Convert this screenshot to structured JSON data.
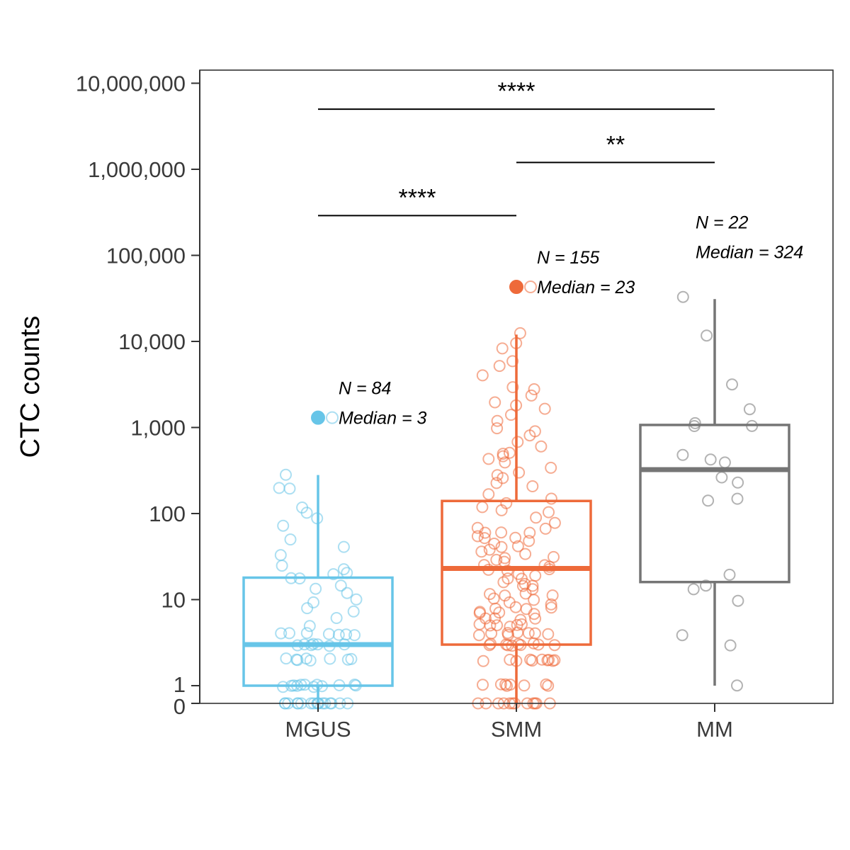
{
  "chart_data": {
    "type": "box",
    "title": "",
    "xlabel": "",
    "ylabel": "CTC counts",
    "y_scale": "pseudo-log",
    "ylim": [
      0,
      25000000
    ],
    "y_ticks": [
      {
        "value": 0,
        "label": "0"
      },
      {
        "value": 1,
        "label": "1"
      },
      {
        "value": 10,
        "label": "10"
      },
      {
        "value": 100,
        "label": "100"
      },
      {
        "value": 1000,
        "label": "1,000"
      },
      {
        "value": 10000,
        "label": "10,000"
      },
      {
        "value": 100000,
        "label": "100,000"
      },
      {
        "value": 1000000,
        "label": "1,000,000"
      },
      {
        "value": 10000000,
        "label": "10,000,000"
      }
    ],
    "categories": [
      "MGUS",
      "SMM",
      "MM"
    ],
    "grid": false,
    "legend": "none",
    "groups": [
      {
        "name": "MGUS",
        "color": "#67C5E8",
        "n_label": "N = 84",
        "median_label": "Median = 3",
        "box": {
          "q1": 1,
          "median": 3,
          "q3": 18,
          "whisker_low": 0,
          "whisker_high": 280
        },
        "marker_value": 1300,
        "points": [
          0,
          0,
          0,
          0,
          0,
          0,
          0,
          0,
          0,
          0,
          0,
          0,
          0,
          0,
          0,
          0,
          0,
          1,
          1,
          1,
          1,
          1,
          1,
          1,
          1,
          1,
          1,
          1,
          1,
          2,
          2,
          2,
          2,
          2,
          2,
          2,
          2,
          3,
          3,
          3,
          3,
          3,
          3,
          3,
          4,
          4,
          4,
          4,
          4,
          4,
          4,
          5,
          6,
          7,
          8,
          9,
          10,
          12,
          13,
          15,
          17,
          18,
          20,
          20,
          22,
          24,
          33,
          42,
          50,
          71,
          85,
          100,
          120,
          190,
          200,
          280
        ]
      },
      {
        "name": "SMM",
        "color": "#EE6A3A",
        "n_label": "N = 155",
        "median_label": "Median = 23",
        "box": {
          "q1": 3,
          "median": 23,
          "q3": 140,
          "whisker_low": 0,
          "whisker_high": 12000
        },
        "marker_value": 43000,
        "points": [
          0,
          0,
          0,
          0,
          0,
          0,
          0,
          0,
          0,
          0,
          0,
          0,
          1,
          1,
          1,
          1,
          1,
          1,
          1,
          1,
          2,
          2,
          2,
          2,
          2,
          2,
          2,
          2,
          2,
          2,
          3,
          3,
          3,
          3,
          3,
          3,
          3,
          3,
          3,
          3,
          4,
          4,
          4,
          4,
          4,
          4,
          4,
          4,
          5,
          5,
          5,
          5,
          5,
          5,
          6,
          6,
          6,
          6,
          7,
          7,
          7,
          7,
          8,
          8,
          8,
          8,
          9,
          9,
          10,
          10,
          11,
          11,
          12,
          12,
          13,
          14,
          15,
          15,
          16,
          17,
          18,
          19,
          20,
          21,
          22,
          23,
          24,
          25,
          26,
          27,
          28,
          30,
          32,
          34,
          36,
          38,
          40,
          42,
          45,
          48,
          50,
          52,
          55,
          58,
          60,
          62,
          65,
          70,
          80,
          90,
          100,
          110,
          120,
          130,
          150,
          170,
          200,
          220,
          250,
          280,
          300,
          330,
          380,
          420,
          450,
          480,
          500,
          600,
          700,
          800,
          900,
          1000,
          1200,
          1400,
          1600,
          1800,
          2000,
          2300,
          2700,
          3000,
          4000,
          5000,
          6000,
          8000,
          9500,
          12000
        ]
      },
      {
        "name": "MM",
        "color": "#757575",
        "n_label": "N = 22",
        "median_label": "Median = 324",
        "box": {
          "q1": 16,
          "median": 324,
          "q3": 1070,
          "whisker_low": 1,
          "whisker_high": 31000
        },
        "points": [
          1,
          3,
          4,
          10,
          13,
          15,
          20,
          140,
          145,
          230,
          260,
          380,
          420,
          480,
          1000,
          1050,
          1100,
          1600,
          3200,
          12000,
          32000
        ]
      }
    ],
    "comparisons": [
      {
        "from": "MGUS",
        "to": "MM",
        "label": "****",
        "y": 5000000
      },
      {
        "from": "SMM",
        "to": "MM",
        "label": "**",
        "y": 1200000
      },
      {
        "from": "MGUS",
        "to": "SMM",
        "label": "****",
        "y": 290000
      }
    ]
  }
}
